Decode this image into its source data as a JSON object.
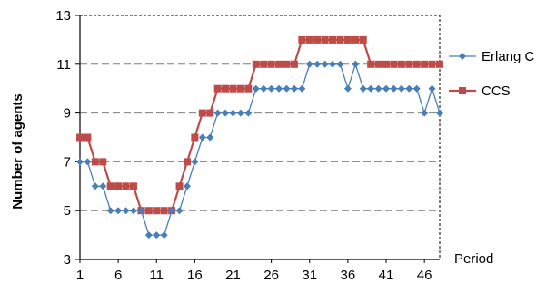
{
  "chart_data": {
    "type": "line",
    "title": "",
    "xlabel": "Period",
    "ylabel": "Number of agents",
    "ylim": [
      3,
      13
    ],
    "yticks": [
      3,
      5,
      7,
      9,
      11,
      13
    ],
    "xlim": [
      1,
      48
    ],
    "xticks": [
      1,
      6,
      11,
      16,
      21,
      26,
      31,
      36,
      41,
      46
    ],
    "grid": "horizontal dashed",
    "legend_position": "right",
    "x": [
      1,
      2,
      3,
      4,
      5,
      6,
      7,
      8,
      9,
      10,
      11,
      12,
      13,
      14,
      15,
      16,
      17,
      18,
      19,
      20,
      21,
      22,
      23,
      24,
      25,
      26,
      27,
      28,
      29,
      30,
      31,
      32,
      33,
      34,
      35,
      36,
      37,
      38,
      39,
      40,
      41,
      42,
      43,
      44,
      45,
      46,
      47,
      48
    ],
    "series": [
      {
        "name": "Erlang C",
        "color": "#4a7ebb",
        "marker": "diamond",
        "values": [
          7,
          7,
          6,
          6,
          5,
          5,
          5,
          5,
          5,
          4,
          4,
          4,
          5,
          5,
          6,
          7,
          8,
          8,
          9,
          9,
          9,
          9,
          9,
          10,
          10,
          10,
          10,
          10,
          10,
          10,
          11,
          11,
          11,
          11,
          11,
          10,
          11,
          10,
          10,
          10,
          10,
          10,
          10,
          10,
          10,
          9,
          10,
          9
        ]
      },
      {
        "name": "CCS",
        "color": "#be4b48",
        "marker": "square",
        "values": [
          8,
          8,
          7,
          7,
          6,
          6,
          6,
          6,
          5,
          5,
          5,
          5,
          5,
          6,
          7,
          8,
          9,
          9,
          10,
          10,
          10,
          10,
          10,
          11,
          11,
          11,
          11,
          11,
          11,
          12,
          12,
          12,
          12,
          12,
          12,
          12,
          12,
          12,
          11,
          11,
          11,
          11,
          11,
          11,
          11,
          11,
          11,
          11
        ]
      }
    ]
  }
}
